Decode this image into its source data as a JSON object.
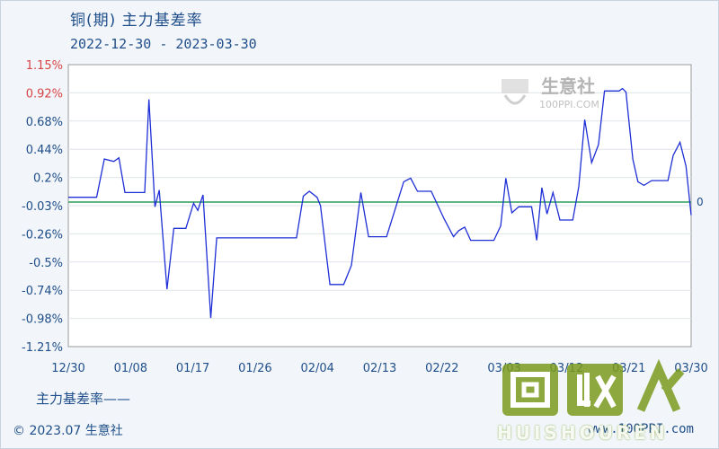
{
  "header": {
    "title": "铜(期) 主力基差率",
    "date_range": "2022-12-30 - 2023-03-30"
  },
  "logo": {
    "name": "生意社",
    "url": "100PPI.COM"
  },
  "legend": {
    "label": "主力基差率——"
  },
  "footer": {
    "copyright": "© 2023.07 生意社",
    "site": "www.100PPI.com"
  },
  "watermark": {
    "text": "HUISHOUREN",
    "chars": "回收人"
  },
  "colors": {
    "line": "#1f2fd6",
    "zero_line": "#2e9e5b",
    "negative_tick": "#d64545",
    "text": "#1f4e8a"
  },
  "chart_data": {
    "type": "line",
    "x_ticks": [
      "12/30",
      "01/08",
      "01/17",
      "01/26",
      "02/04",
      "02/13",
      "02/22",
      "03/03",
      "03/12",
      "03/21",
      "03/30"
    ],
    "y_ticks": [
      "1.15%",
      "0.92%",
      "0.68%",
      "0.44%",
      "0.2%",
      "-0.03%",
      "-0.26%",
      "-0.5%",
      "-0.74%",
      "-0.98%",
      "-1.21%"
    ],
    "ylim": [
      -1.21,
      1.15
    ],
    "zero_label": "0",
    "reference_line": 0,
    "series": [
      {
        "name": "主力基差率",
        "points": [
          [
            0,
            0.04
          ],
          [
            3.3,
            0.04
          ],
          [
            4.2,
            0.36
          ],
          [
            5.3,
            0.34
          ],
          [
            5.9,
            0.37
          ],
          [
            6.6,
            0.08
          ],
          [
            8.9,
            0.08
          ],
          [
            9.4,
            0.86
          ],
          [
            10.1,
            -0.04
          ],
          [
            10.6,
            0.1
          ],
          [
            11.5,
            -0.73
          ],
          [
            12.3,
            -0.22
          ],
          [
            13.7,
            -0.22
          ],
          [
            14.6,
            -0.01
          ],
          [
            15.1,
            -0.07
          ],
          [
            15.7,
            0.06
          ],
          [
            16.6,
            -0.97
          ],
          [
            17.3,
            -0.3
          ],
          [
            26.6,
            -0.3
          ],
          [
            27.4,
            0.05
          ],
          [
            28.1,
            0.09
          ],
          [
            29.0,
            0.04
          ],
          [
            29.4,
            -0.03
          ],
          [
            30.5,
            -0.69
          ],
          [
            32.1,
            -0.69
          ],
          [
            33.0,
            -0.53
          ],
          [
            34.1,
            0.08
          ],
          [
            35.0,
            -0.29
          ],
          [
            37.1,
            -0.29
          ],
          [
            39.1,
            0.17
          ],
          [
            39.9,
            0.2
          ],
          [
            40.7,
            0.09
          ],
          [
            42.3,
            0.09
          ],
          [
            43.8,
            -0.14
          ],
          [
            44.9,
            -0.29
          ],
          [
            45.5,
            -0.24
          ],
          [
            46.2,
            -0.21
          ],
          [
            46.9,
            -0.32
          ],
          [
            49.6,
            -0.32
          ],
          [
            50.4,
            -0.2
          ],
          [
            51.0,
            0.2
          ],
          [
            51.7,
            -0.09
          ],
          [
            52.5,
            -0.04
          ],
          [
            54.0,
            -0.04
          ],
          [
            54.6,
            -0.32
          ],
          [
            55.2,
            0.12
          ],
          [
            55.8,
            -0.1
          ],
          [
            56.5,
            0.08
          ],
          [
            57.3,
            -0.15
          ],
          [
            58.8,
            -0.15
          ],
          [
            59.5,
            0.13
          ],
          [
            60.2,
            0.69
          ],
          [
            61.0,
            0.33
          ],
          [
            61.8,
            0.48
          ],
          [
            62.5,
            0.93
          ],
          [
            64.2,
            0.93
          ],
          [
            64.6,
            0.95
          ],
          [
            65.0,
            0.92
          ],
          [
            65.8,
            0.36
          ],
          [
            66.4,
            0.17
          ],
          [
            67.1,
            0.14
          ],
          [
            68.0,
            0.18
          ],
          [
            69.9,
            0.18
          ],
          [
            70.5,
            0.39
          ],
          [
            71.3,
            0.5
          ],
          [
            72.0,
            0.3
          ],
          [
            72.6,
            -0.11
          ]
        ]
      }
    ],
    "x_domain": [
      0,
      72.6
    ]
  }
}
